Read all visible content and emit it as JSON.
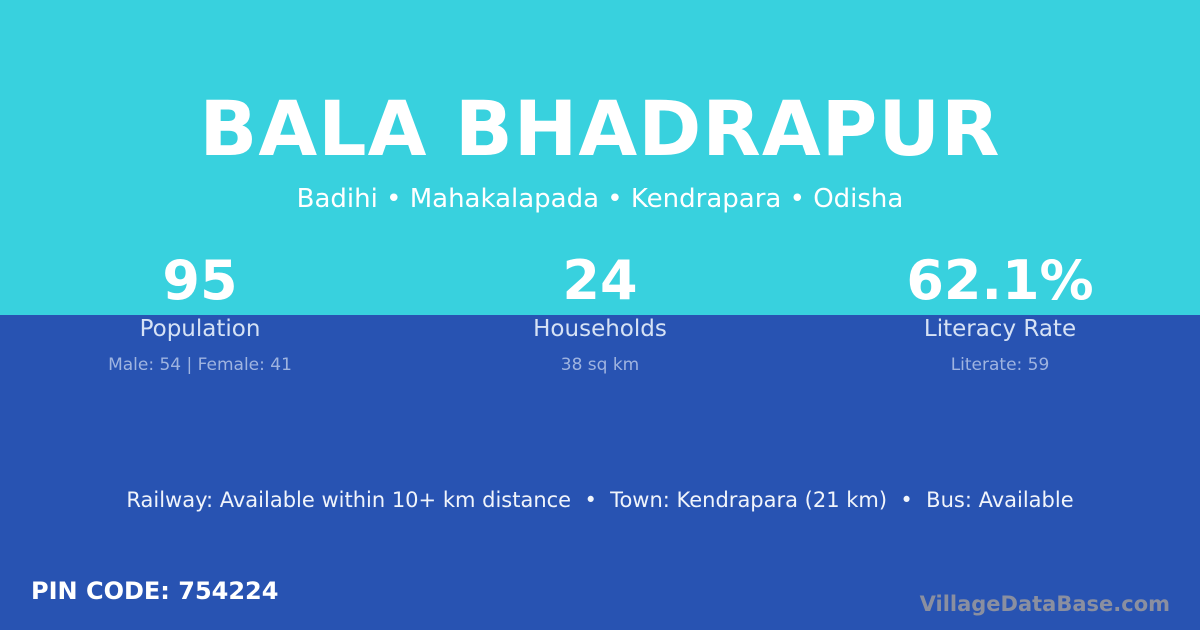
{
  "colors": {
    "top_band": "#38D1DE",
    "bottom_band": "#2853B2",
    "text": "#FFFFFF"
  },
  "village_name": "BALA BHADRAPUR",
  "location": "Badihi • Mahakalapada • Kendrapara • Odisha",
  "stats": [
    {
      "value": "95",
      "label": "Population",
      "detail": "Male: 54 | Female: 41"
    },
    {
      "value": "24",
      "label": "Households",
      "detail": "38 sq km"
    },
    {
      "value": "62.1%",
      "label": "Literacy Rate",
      "detail": "Literate: 59"
    }
  ],
  "facilities": "Railway: Available within 10+ km distance  •  Town: Kendrapara (21 km)  •  Bus: Available",
  "pin_code": "PIN CODE: 754224",
  "brand": "VillageDataBase.com"
}
